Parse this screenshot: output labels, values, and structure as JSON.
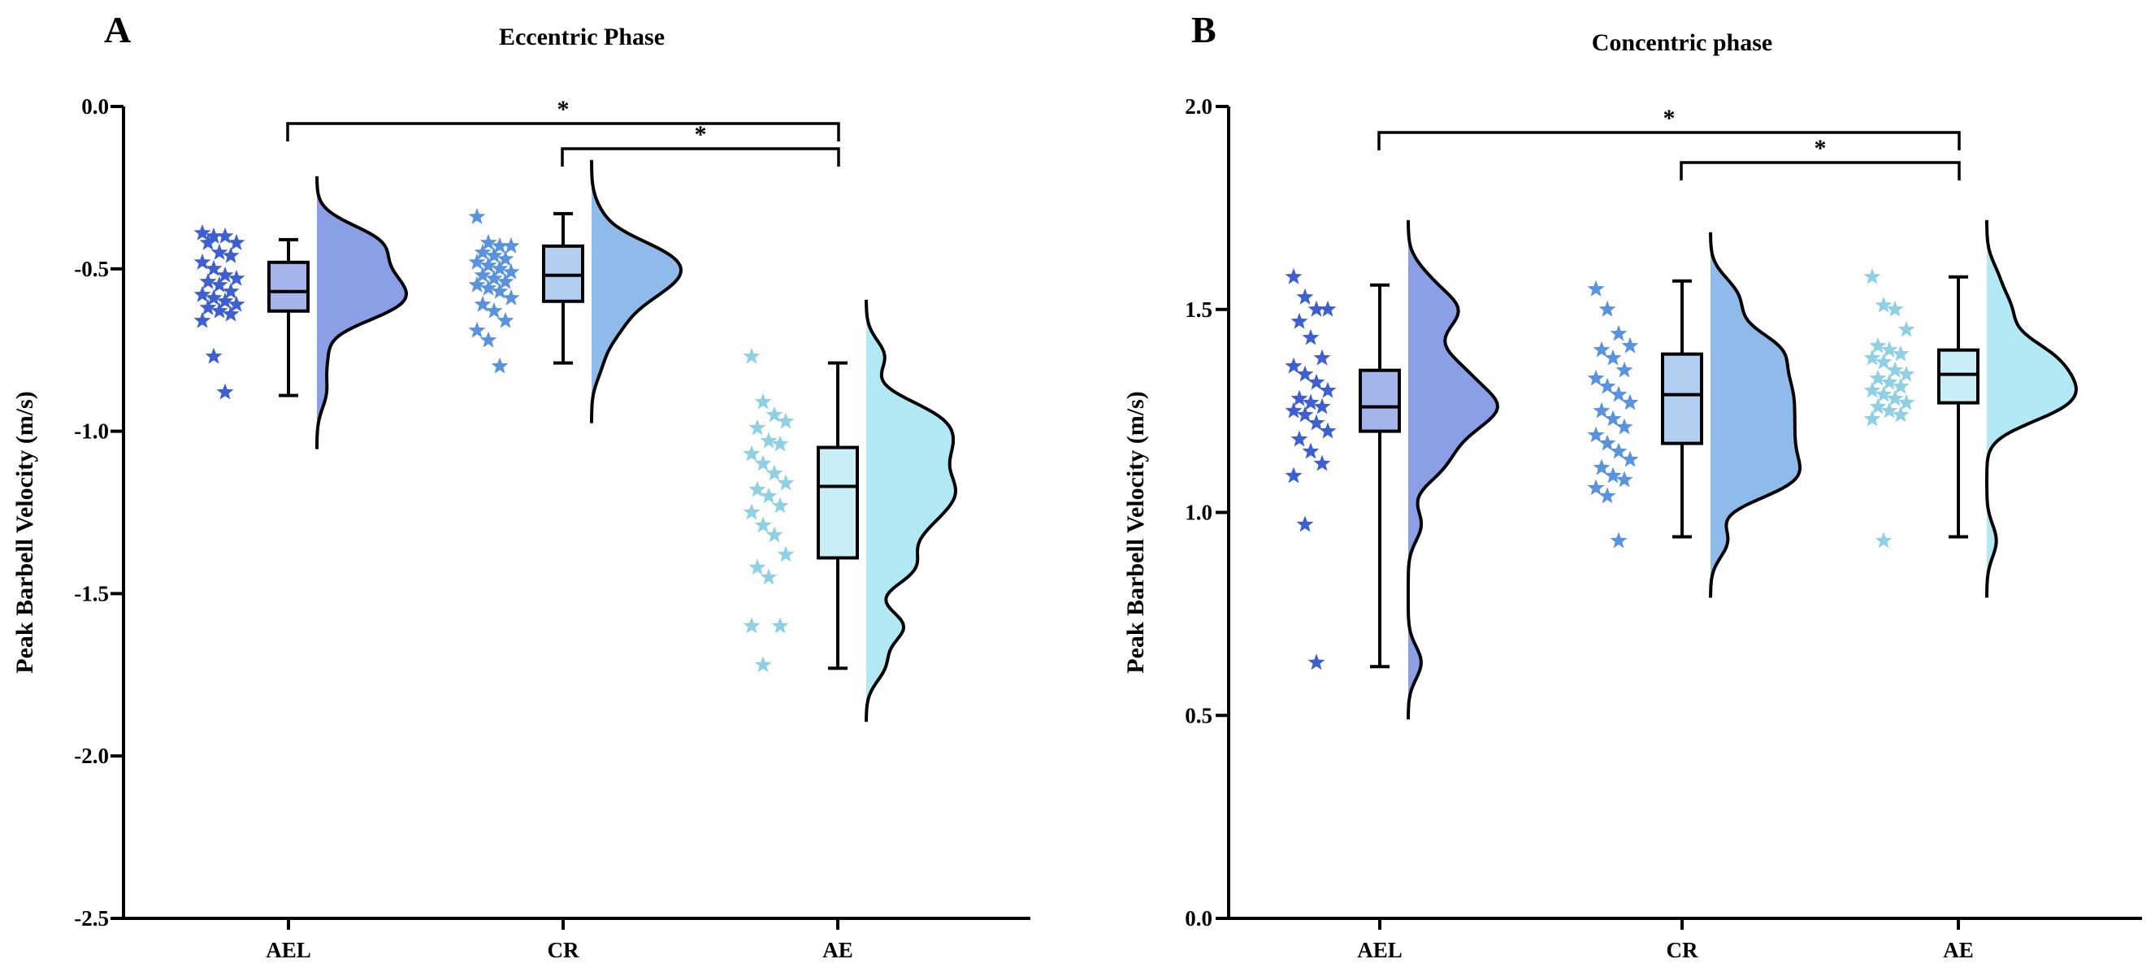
{
  "chart_data": [
    {
      "type": "raincloud",
      "panel": "A",
      "title": "Eccentric Phase",
      "xlabel": "",
      "ylabel": "Peak Barbell Velocity (m/s)",
      "ylim": [
        -2.5,
        0.0
      ],
      "yticks": [
        0.0,
        -0.5,
        -1.0,
        -1.5,
        -2.0,
        -2.5
      ],
      "ytick_labels": [
        "0.0",
        "-0.5",
        "-1.0",
        "-1.5",
        "-2.0",
        "-2.5"
      ],
      "categories": [
        "AEL",
        "CR",
        "AE"
      ],
      "colors": [
        "#3d5fd0",
        "#5a93dd",
        "#8fd0e4"
      ],
      "violin_colors": [
        "#8a9fe6",
        "#8fbbea",
        "#b2e8f3"
      ],
      "box_colors": [
        "#a6b4ec",
        "#b2cff1",
        "#c8eef6"
      ],
      "points": [
        [
          -0.39,
          -0.4,
          -0.4,
          -0.42,
          -0.42,
          -0.45,
          -0.46,
          -0.48,
          -0.5,
          -0.52,
          -0.53,
          -0.54,
          -0.55,
          -0.57,
          -0.58,
          -0.59,
          -0.6,
          -0.61,
          -0.62,
          -0.63,
          -0.64,
          -0.66,
          -0.77,
          -0.88
        ],
        [
          -0.34,
          -0.42,
          -0.43,
          -0.43,
          -0.45,
          -0.46,
          -0.47,
          -0.48,
          -0.49,
          -0.5,
          -0.51,
          -0.52,
          -0.53,
          -0.54,
          -0.55,
          -0.56,
          -0.57,
          -0.59,
          -0.61,
          -0.63,
          -0.66,
          -0.69,
          -0.72,
          -0.8
        ],
        [
          -0.77,
          -0.91,
          -0.95,
          -0.97,
          -0.99,
          -1.03,
          -1.04,
          -1.07,
          -1.1,
          -1.13,
          -1.16,
          -1.18,
          -1.2,
          -1.23,
          -1.25,
          -1.29,
          -1.32,
          -1.38,
          -1.42,
          -1.45,
          -1.6,
          -1.6,
          -1.72
        ]
      ],
      "boxes": [
        {
          "min": -0.89,
          "q1": -0.63,
          "median": -0.57,
          "q3": -0.48,
          "max": -0.41
        },
        {
          "min": -0.79,
          "q1": -0.6,
          "median": -0.52,
          "q3": -0.43,
          "max": -0.33
        },
        {
          "min": -1.73,
          "q1": -1.39,
          "median": -1.17,
          "q3": -1.05,
          "max": -0.79
        }
      ],
      "significance": [
        {
          "from": "AEL",
          "to": "AE",
          "label": "*"
        },
        {
          "from": "CR",
          "to": "AE",
          "label": "*"
        }
      ]
    },
    {
      "type": "raincloud",
      "panel": "B",
      "title": "Concentric phase",
      "xlabel": "",
      "ylabel": "Peak Barbell Velocity (m/s)",
      "ylim": [
        0.0,
        2.0
      ],
      "yticks": [
        0.0,
        0.5,
        1.0,
        1.5,
        2.0
      ],
      "ytick_labels": [
        "0.0",
        "0.5",
        "1.0",
        "1.5",
        "2.0"
      ],
      "categories": [
        "AEL",
        "CR",
        "AE"
      ],
      "colors": [
        "#3d5fd0",
        "#5a93dd",
        "#8fd0e4"
      ],
      "violin_colors": [
        "#8a9fe6",
        "#8fbbea",
        "#b2e8f3"
      ],
      "box_colors": [
        "#a6b4ec",
        "#b2cff1",
        "#c8eef6"
      ],
      "points": [
        [
          1.58,
          1.53,
          1.5,
          1.5,
          1.47,
          1.43,
          1.38,
          1.36,
          1.34,
          1.32,
          1.3,
          1.28,
          1.27,
          1.26,
          1.25,
          1.24,
          1.22,
          1.2,
          1.18,
          1.15,
          1.12,
          1.09,
          0.97,
          0.63
        ],
        [
          1.55,
          1.5,
          1.44,
          1.41,
          1.4,
          1.38,
          1.35,
          1.33,
          1.31,
          1.29,
          1.27,
          1.25,
          1.23,
          1.21,
          1.19,
          1.17,
          1.15,
          1.13,
          1.11,
          1.09,
          1.08,
          1.06,
          1.04,
          0.93
        ],
        [
          1.58,
          1.51,
          1.5,
          1.45,
          1.41,
          1.4,
          1.39,
          1.38,
          1.37,
          1.35,
          1.34,
          1.33,
          1.32,
          1.31,
          1.3,
          1.29,
          1.28,
          1.27,
          1.26,
          1.25,
          1.24,
          1.23,
          0.93
        ]
      ],
      "boxes": [
        {
          "min": 0.62,
          "q1": 1.2,
          "median": 1.26,
          "q3": 1.35,
          "max": 1.56
        },
        {
          "min": 0.94,
          "q1": 1.17,
          "median": 1.29,
          "q3": 1.39,
          "max": 1.57
        },
        {
          "min": 0.94,
          "q1": 1.27,
          "median": 1.34,
          "q3": 1.4,
          "max": 1.58
        }
      ],
      "significance": [
        {
          "from": "AEL",
          "to": "AE",
          "label": "*"
        },
        {
          "from": "CR",
          "to": "AE",
          "label": "*"
        }
      ]
    }
  ]
}
